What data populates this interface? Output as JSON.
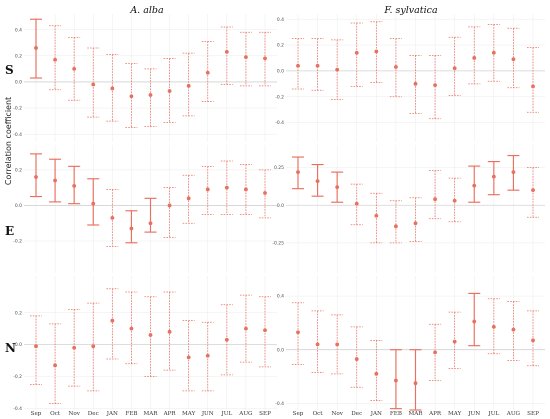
{
  "chart_data": {
    "type": "scatter",
    "ylabel": "Correlation coefficient",
    "color": "#e8705f",
    "columns": [
      "A. alba",
      "F. sylvatica"
    ],
    "rows": [
      "S",
      "E",
      "N"
    ],
    "months": [
      "Sep",
      "Oct",
      "Nov",
      "Dec",
      "JAN",
      "FEB",
      "MAR",
      "APR",
      "MAY",
      "JUN",
      "JUL",
      "AUG",
      "SEP"
    ],
    "panels": [
      {
        "id": "S-alba",
        "column": "A. alba",
        "row": "S",
        "ylim": [
          -0.46,
          0.52
        ],
        "ticks": [
          -0.4,
          -0.2,
          0.0,
          0.2,
          0.4
        ],
        "points": [
          {
            "v": 0.26,
            "lo": 0.03,
            "hi": 0.48,
            "sig": true
          },
          {
            "v": 0.17,
            "lo": -0.06,
            "hi": 0.43,
            "sig": false
          },
          {
            "v": 0.1,
            "lo": -0.14,
            "hi": 0.34,
            "sig": false
          },
          {
            "v": -0.02,
            "lo": -0.27,
            "hi": 0.26,
            "sig": false
          },
          {
            "v": -0.05,
            "lo": -0.3,
            "hi": 0.21,
            "sig": false
          },
          {
            "v": -0.11,
            "lo": -0.35,
            "hi": 0.14,
            "sig": false
          },
          {
            "v": -0.1,
            "lo": -0.34,
            "hi": 0.1,
            "sig": false
          },
          {
            "v": -0.07,
            "lo": -0.31,
            "hi": 0.18,
            "sig": false
          },
          {
            "v": -0.03,
            "lo": -0.26,
            "hi": 0.22,
            "sig": false
          },
          {
            "v": 0.07,
            "lo": -0.15,
            "hi": 0.31,
            "sig": false
          },
          {
            "v": 0.23,
            "lo": -0.02,
            "hi": 0.42,
            "sig": false
          },
          {
            "v": 0.19,
            "lo": -0.03,
            "hi": 0.38,
            "sig": false
          },
          {
            "v": 0.18,
            "lo": -0.03,
            "hi": 0.38,
            "sig": false
          }
        ]
      },
      {
        "id": "E-alba",
        "column": "A. alba",
        "row": "E",
        "ylim": [
          -0.38,
          0.34
        ],
        "ticks": [
          -0.2,
          0.0,
          0.2
        ],
        "points": [
          {
            "v": 0.16,
            "lo": 0.05,
            "hi": 0.29,
            "sig": true
          },
          {
            "v": 0.14,
            "lo": 0.02,
            "hi": 0.26,
            "sig": true
          },
          {
            "v": 0.11,
            "lo": 0.01,
            "hi": 0.22,
            "sig": true
          },
          {
            "v": 0.01,
            "lo": -0.11,
            "hi": 0.15,
            "sig": true
          },
          {
            "v": -0.07,
            "lo": -0.23,
            "hi": 0.09,
            "sig": false
          },
          {
            "v": -0.13,
            "lo": -0.21,
            "hi": -0.03,
            "sig": true
          },
          {
            "v": -0.1,
            "lo": -0.15,
            "hi": 0.04,
            "sig": true
          },
          {
            "v": 0.0,
            "lo": -0.18,
            "hi": 0.1,
            "sig": false
          },
          {
            "v": 0.04,
            "lo": -0.1,
            "hi": 0.17,
            "sig": false
          },
          {
            "v": 0.09,
            "lo": -0.05,
            "hi": 0.22,
            "sig": false
          },
          {
            "v": 0.1,
            "lo": -0.05,
            "hi": 0.25,
            "sig": false
          },
          {
            "v": 0.09,
            "lo": -0.05,
            "hi": 0.23,
            "sig": false
          },
          {
            "v": 0.07,
            "lo": -0.07,
            "hi": 0.2,
            "sig": false
          }
        ]
      },
      {
        "id": "N-alba",
        "column": "A. alba",
        "row": "N",
        "ylim": [
          -0.41,
          0.43
        ],
        "ticks": [
          -0.4,
          -0.2,
          0.0,
          0.2
        ],
        "points": [
          {
            "v": -0.01,
            "lo": -0.25,
            "hi": 0.18,
            "sig": false
          },
          {
            "v": -0.13,
            "lo": -0.37,
            "hi": 0.13,
            "sig": false
          },
          {
            "v": -0.02,
            "lo": -0.26,
            "hi": 0.22,
            "sig": false
          },
          {
            "v": -0.01,
            "lo": -0.29,
            "hi": 0.26,
            "sig": false
          },
          {
            "v": 0.15,
            "lo": -0.09,
            "hi": 0.35,
            "sig": false
          },
          {
            "v": 0.1,
            "lo": -0.12,
            "hi": 0.33,
            "sig": false
          },
          {
            "v": 0.06,
            "lo": -0.2,
            "hi": 0.3,
            "sig": false
          },
          {
            "v": 0.08,
            "lo": -0.16,
            "hi": 0.33,
            "sig": false
          },
          {
            "v": -0.08,
            "lo": -0.29,
            "hi": 0.15,
            "sig": false
          },
          {
            "v": -0.07,
            "lo": -0.29,
            "hi": 0.14,
            "sig": false
          },
          {
            "v": 0.03,
            "lo": -0.19,
            "hi": 0.25,
            "sig": false
          },
          {
            "v": 0.1,
            "lo": -0.11,
            "hi": 0.31,
            "sig": false
          },
          {
            "v": 0.09,
            "lo": -0.14,
            "hi": 0.3,
            "sig": false
          }
        ]
      },
      {
        "id": "S-sylv",
        "column": "F. sylvatica",
        "row": "S",
        "ylim": [
          -0.55,
          0.44
        ],
        "ticks": [
          -0.4,
          -0.2,
          0.0,
          0.2,
          0.4
        ],
        "points": [
          {
            "v": 0.04,
            "lo": -0.14,
            "hi": 0.25,
            "sig": false
          },
          {
            "v": 0.04,
            "lo": -0.15,
            "hi": 0.25,
            "sig": false
          },
          {
            "v": 0.01,
            "lo": -0.22,
            "hi": 0.24,
            "sig": false
          },
          {
            "v": 0.14,
            "lo": -0.12,
            "hi": 0.37,
            "sig": false
          },
          {
            "v": 0.15,
            "lo": -0.09,
            "hi": 0.38,
            "sig": false
          },
          {
            "v": 0.03,
            "lo": -0.2,
            "hi": 0.25,
            "sig": false
          },
          {
            "v": -0.1,
            "lo": -0.33,
            "hi": 0.12,
            "sig": false
          },
          {
            "v": -0.11,
            "lo": -0.37,
            "hi": 0.12,
            "sig": false
          },
          {
            "v": 0.02,
            "lo": -0.19,
            "hi": 0.26,
            "sig": false
          },
          {
            "v": 0.1,
            "lo": -0.1,
            "hi": 0.34,
            "sig": false
          },
          {
            "v": 0.14,
            "lo": -0.08,
            "hi": 0.36,
            "sig": false
          },
          {
            "v": 0.09,
            "lo": -0.13,
            "hi": 0.33,
            "sig": false
          },
          {
            "v": -0.12,
            "lo": -0.32,
            "hi": 0.18,
            "sig": false
          }
        ]
      },
      {
        "id": "E-sylv",
        "column": "F. sylvatica",
        "row": "E",
        "ylim": [
          -0.45,
          0.4
        ],
        "ticks": [
          -0.25,
          0.0,
          0.25
        ],
        "points": [
          {
            "v": 0.22,
            "lo": 0.11,
            "hi": 0.32,
            "sig": true
          },
          {
            "v": 0.16,
            "lo": 0.06,
            "hi": 0.27,
            "sig": true
          },
          {
            "v": 0.12,
            "lo": 0.02,
            "hi": 0.22,
            "sig": true
          },
          {
            "v": 0.01,
            "lo": -0.13,
            "hi": 0.14,
            "sig": false
          },
          {
            "v": -0.07,
            "lo": -0.25,
            "hi": 0.08,
            "sig": false
          },
          {
            "v": -0.14,
            "lo": -0.25,
            "hi": 0.03,
            "sig": false
          },
          {
            "v": -0.12,
            "lo": -0.24,
            "hi": 0.05,
            "sig": false
          },
          {
            "v": 0.04,
            "lo": -0.09,
            "hi": 0.23,
            "sig": false
          },
          {
            "v": 0.03,
            "lo": -0.11,
            "hi": 0.18,
            "sig": false
          },
          {
            "v": 0.13,
            "lo": 0.02,
            "hi": 0.26,
            "sig": true
          },
          {
            "v": 0.19,
            "lo": 0.07,
            "hi": 0.29,
            "sig": true
          },
          {
            "v": 0.22,
            "lo": 0.1,
            "hi": 0.33,
            "sig": true
          },
          {
            "v": 0.1,
            "lo": -0.08,
            "hi": 0.25,
            "sig": false
          }
        ]
      },
      {
        "id": "N-sylv",
        "column": "F. sylvatica",
        "row": "N",
        "ylim": [
          -0.45,
          0.55
        ],
        "ticks": [
          -0.4,
          0.0,
          0.4
        ],
        "points": [
          {
            "v": 0.13,
            "lo": -0.11,
            "hi": 0.35,
            "sig": false
          },
          {
            "v": 0.04,
            "lo": -0.17,
            "hi": 0.29,
            "sig": false
          },
          {
            "v": 0.04,
            "lo": -0.18,
            "hi": 0.26,
            "sig": false
          },
          {
            "v": -0.07,
            "lo": -0.28,
            "hi": 0.17,
            "sig": false
          },
          {
            "v": -0.18,
            "lo": -0.38,
            "hi": 0.07,
            "sig": false
          },
          {
            "v": -0.23,
            "lo": -0.44,
            "hi": 0.0,
            "sig": true
          },
          {
            "v": -0.25,
            "lo": -0.45,
            "hi": 0.0,
            "sig": true
          },
          {
            "v": -0.02,
            "lo": -0.23,
            "hi": 0.19,
            "sig": false
          },
          {
            "v": 0.06,
            "lo": -0.14,
            "hi": 0.28,
            "sig": false
          },
          {
            "v": 0.21,
            "lo": 0.03,
            "hi": 0.42,
            "sig": true
          },
          {
            "v": 0.17,
            "lo": -0.03,
            "hi": 0.38,
            "sig": false
          },
          {
            "v": 0.15,
            "lo": -0.08,
            "hi": 0.36,
            "sig": false
          },
          {
            "v": 0.07,
            "lo": -0.12,
            "hi": 0.29,
            "sig": false
          }
        ]
      }
    ]
  }
}
